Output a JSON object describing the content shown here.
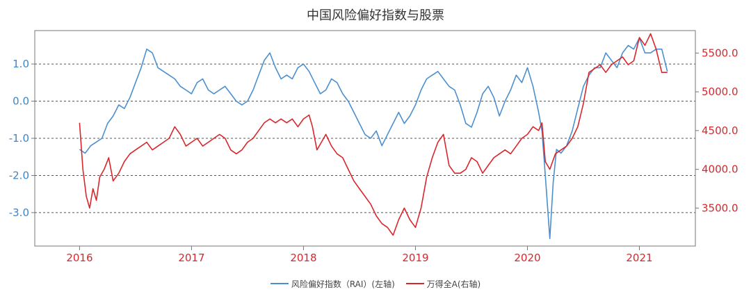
{
  "chart_data": {
    "type": "line",
    "title": "中国风险偏好指数与股票",
    "xlabel": "",
    "ylabel_left": "",
    "ylabel_right": "",
    "x_ticks": [
      "2016",
      "2017",
      "2018",
      "2019",
      "2020",
      "2021"
    ],
    "x_range": [
      2015.6,
      2021.5
    ],
    "left_ticks": [
      "1.0",
      "0.0",
      "-1.0",
      "-2.0",
      "-3.0"
    ],
    "left_tick_values": [
      1.0,
      0.0,
      -1.0,
      -2.0,
      -3.0
    ],
    "left_range": [
      -3.9,
      1.9
    ],
    "right_ticks": [
      "5500.0",
      "5000.0",
      "4500.0",
      "4000.0",
      "3500.0"
    ],
    "right_tick_values": [
      5500,
      5000,
      4500,
      4000,
      3500
    ],
    "right_range": [
      3010,
      5790
    ],
    "grid": "horizontal dashed at left-axis ticks",
    "legend_position": "bottom",
    "series": [
      {
        "name": "风险偏好指数（RAI）(左轴)",
        "axis": "left",
        "color": "#4A8FD0",
        "x": [
          2016.0,
          2016.05,
          2016.1,
          2016.15,
          2016.2,
          2016.25,
          2016.3,
          2016.35,
          2016.4,
          2016.45,
          2016.5,
          2016.55,
          2016.6,
          2016.65,
          2016.7,
          2016.75,
          2016.8,
          2016.85,
          2016.9,
          2016.95,
          2017.0,
          2017.05,
          2017.1,
          2017.15,
          2017.2,
          2017.25,
          2017.3,
          2017.35,
          2017.4,
          2017.45,
          2017.5,
          2017.55,
          2017.6,
          2017.65,
          2017.7,
          2017.75,
          2017.8,
          2017.85,
          2017.9,
          2017.95,
          2018.0,
          2018.05,
          2018.1,
          2018.15,
          2018.2,
          2018.25,
          2018.3,
          2018.35,
          2018.4,
          2018.45,
          2018.5,
          2018.55,
          2018.6,
          2018.65,
          2018.7,
          2018.75,
          2018.8,
          2018.85,
          2018.9,
          2018.95,
          2019.0,
          2019.05,
          2019.1,
          2019.15,
          2019.2,
          2019.25,
          2019.3,
          2019.35,
          2019.4,
          2019.45,
          2019.5,
          2019.55,
          2019.6,
          2019.65,
          2019.7,
          2019.75,
          2019.8,
          2019.85,
          2019.9,
          2019.95,
          2020.0,
          2020.05,
          2020.1,
          2020.13,
          2020.16,
          2020.2,
          2020.23,
          2020.26,
          2020.3,
          2020.35,
          2020.4,
          2020.45,
          2020.5,
          2020.55,
          2020.6,
          2020.65,
          2020.7,
          2020.75,
          2020.8,
          2020.85,
          2020.9,
          2020.95,
          2021.0,
          2021.05,
          2021.1,
          2021.15,
          2021.2,
          2021.25
        ],
        "values": [
          -1.3,
          -1.4,
          -1.2,
          -1.1,
          -1.0,
          -0.6,
          -0.4,
          -0.1,
          -0.2,
          0.1,
          0.5,
          0.9,
          1.4,
          1.3,
          0.9,
          0.8,
          0.7,
          0.6,
          0.4,
          0.3,
          0.2,
          0.5,
          0.6,
          0.3,
          0.2,
          0.3,
          0.4,
          0.2,
          0.0,
          -0.1,
          0.0,
          0.3,
          0.7,
          1.1,
          1.3,
          0.9,
          0.6,
          0.7,
          0.6,
          0.9,
          1.0,
          0.8,
          0.5,
          0.2,
          0.3,
          0.6,
          0.5,
          0.2,
          0.0,
          -0.3,
          -0.6,
          -0.9,
          -1.0,
          -0.8,
          -1.2,
          -0.9,
          -0.6,
          -0.3,
          -0.6,
          -0.4,
          -0.1,
          0.3,
          0.6,
          0.7,
          0.8,
          0.6,
          0.4,
          0.3,
          -0.1,
          -0.6,
          -0.7,
          -0.3,
          0.2,
          0.4,
          0.1,
          -0.4,
          0.0,
          0.3,
          0.7,
          0.5,
          0.9,
          0.4,
          -0.3,
          -0.8,
          -2.0,
          -3.7,
          -2.2,
          -1.3,
          -1.4,
          -1.2,
          -0.8,
          -0.2,
          0.4,
          0.7,
          0.9,
          0.9,
          1.3,
          1.1,
          0.9,
          1.3,
          1.5,
          1.4,
          1.7,
          1.3,
          1.3,
          1.4,
          1.4,
          0.8
        ]
      },
      {
        "name": "万得全A(右轴)",
        "axis": "right",
        "color": "#D9262B",
        "x": [
          2016.0,
          2016.03,
          2016.06,
          2016.09,
          2016.12,
          2016.15,
          2016.18,
          2016.22,
          2016.26,
          2016.3,
          2016.35,
          2016.4,
          2016.45,
          2016.5,
          2016.55,
          2016.6,
          2016.65,
          2016.7,
          2016.75,
          2016.8,
          2016.85,
          2016.9,
          2016.95,
          2017.0,
          2017.05,
          2017.1,
          2017.15,
          2017.2,
          2017.25,
          2017.3,
          2017.35,
          2017.4,
          2017.45,
          2017.5,
          2017.55,
          2017.6,
          2017.65,
          2017.7,
          2017.75,
          2017.8,
          2017.85,
          2017.9,
          2017.95,
          2018.0,
          2018.05,
          2018.08,
          2018.12,
          2018.16,
          2018.2,
          2018.25,
          2018.3,
          2018.35,
          2018.4,
          2018.45,
          2018.5,
          2018.55,
          2018.6,
          2018.65,
          2018.7,
          2018.75,
          2018.8,
          2018.85,
          2018.9,
          2018.95,
          2019.0,
          2019.05,
          2019.1,
          2019.15,
          2019.2,
          2019.25,
          2019.3,
          2019.35,
          2019.4,
          2019.45,
          2019.5,
          2019.55,
          2019.6,
          2019.65,
          2019.7,
          2019.75,
          2019.8,
          2019.85,
          2019.9,
          2019.95,
          2020.0,
          2020.05,
          2020.1,
          2020.13,
          2020.16,
          2020.2,
          2020.25,
          2020.3,
          2020.35,
          2020.4,
          2020.45,
          2020.5,
          2020.55,
          2020.6,
          2020.65,
          2020.7,
          2020.75,
          2020.8,
          2020.85,
          2020.9,
          2020.95,
          2021.0,
          2021.05,
          2021.1,
          2021.15,
          2021.2,
          2021.25
        ],
        "values": [
          4600,
          4000,
          3650,
          3500,
          3750,
          3600,
          3900,
          4000,
          4150,
          3850,
          3950,
          4100,
          4200,
          4250,
          4300,
          4350,
          4250,
          4300,
          4350,
          4400,
          4550,
          4450,
          4300,
          4350,
          4400,
          4300,
          4350,
          4400,
          4450,
          4400,
          4250,
          4200,
          4250,
          4350,
          4400,
          4500,
          4600,
          4650,
          4600,
          4650,
          4600,
          4650,
          4550,
          4650,
          4700,
          4550,
          4250,
          4350,
          4450,
          4300,
          4200,
          4150,
          4000,
          3850,
          3750,
          3650,
          3550,
          3400,
          3300,
          3250,
          3150,
          3350,
          3500,
          3350,
          3250,
          3500,
          3900,
          4150,
          4350,
          4450,
          4050,
          3950,
          3950,
          4000,
          4150,
          4100,
          3950,
          4050,
          4150,
          4200,
          4250,
          4200,
          4300,
          4400,
          4450,
          4550,
          4500,
          4600,
          4100,
          4000,
          4200,
          4250,
          4300,
          4400,
          4550,
          4850,
          5250,
          5300,
          5350,
          5250,
          5350,
          5400,
          5450,
          5350,
          5400,
          5700,
          5600,
          5750,
          5550,
          5250,
          5250
        ]
      }
    ]
  }
}
